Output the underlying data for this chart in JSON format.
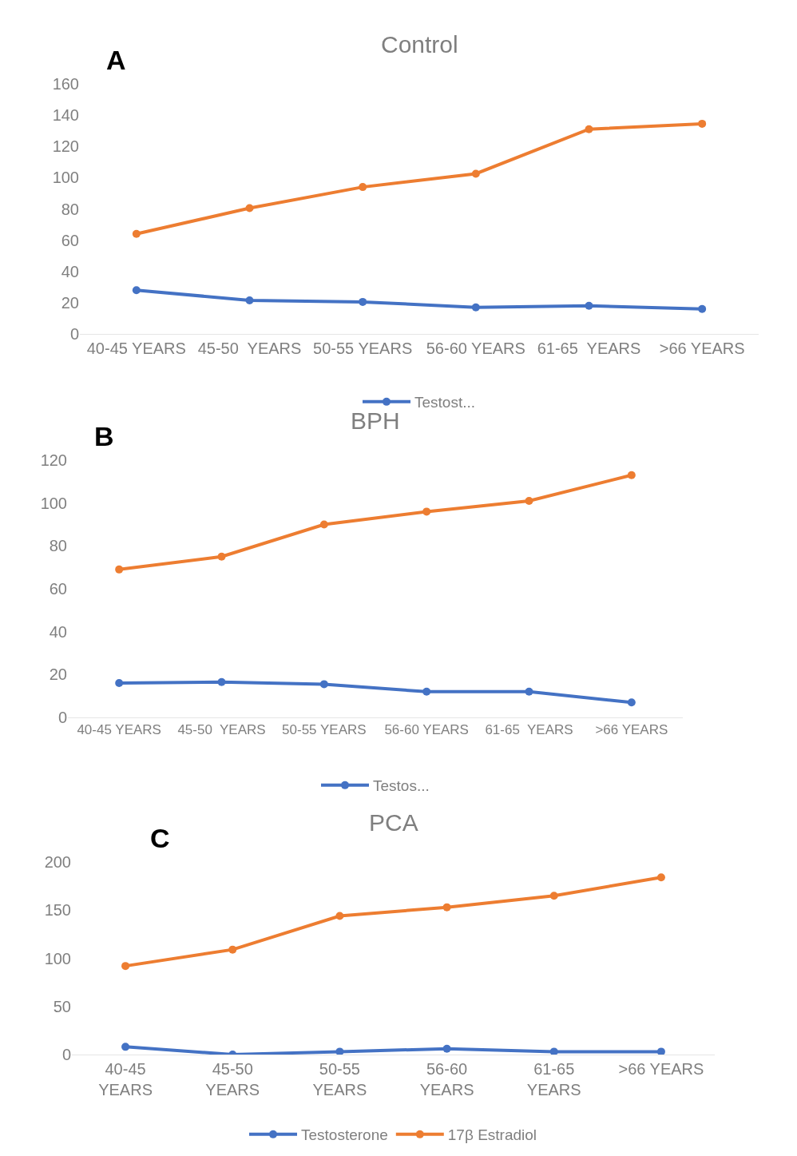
{
  "chart_data": [
    {
      "type": "line",
      "title": "Control",
      "annotations": [
        "A"
      ],
      "categories": [
        "40-45 YEARS",
        "45-50  YEARS",
        "50-55 YEARS",
        "56-60 YEARS",
        "61-65  YEARS",
        ">66 YEARS"
      ],
      "series": [
        {
          "name": "Testost...",
          "color": "#4472c4",
          "values": [
            28,
            21.5,
            20.5,
            17,
            18,
            16
          ]
        },
        {
          "color": "#ed7d31",
          "values": [
            64,
            80.5,
            94,
            102.5,
            131,
            134.5
          ]
        }
      ],
      "ylim": [
        0,
        160
      ],
      "yticks": [
        0,
        20,
        40,
        60,
        80,
        100,
        120,
        140,
        160
      ],
      "legend": "bottom",
      "marker": "circle",
      "line_style": "solid"
    },
    {
      "type": "line",
      "title": "BPH",
      "annotations": [
        "B"
      ],
      "categories": [
        "40-45 YEARS",
        "45-50  YEARS",
        "50-55 YEARS",
        "56-60 YEARS",
        "61-65  YEARS",
        ">66 YEARS"
      ],
      "series": [
        {
          "name": "Testos...",
          "color": "#4472c4",
          "values": [
            16,
            16.5,
            15.5,
            12,
            12,
            7
          ]
        },
        {
          "color": "#ed7d31",
          "values": [
            69,
            75,
            90,
            96,
            101,
            113
          ]
        }
      ],
      "ylim": [
        0,
        120
      ],
      "yticks": [
        0,
        20,
        40,
        60,
        80,
        100,
        120
      ],
      "legend": "bottom",
      "marker": "circle",
      "line_style": "solid"
    },
    {
      "type": "line",
      "title": "PCA",
      "annotations": [
        "C"
      ],
      "categories": [
        "40-45\nYEARS",
        "45-50\nYEARS",
        "50-55\nYEARS",
        "56-60\nYEARS",
        "61-65\nYEARS",
        ">66 YEARS"
      ],
      "series": [
        {
          "name": "Testosterone",
          "color": "#4472c4",
          "values": [
            8,
            0,
            3,
            6,
            3,
            3
          ]
        },
        {
          "name": "17β Estradiol",
          "color": "#ed7d31",
          "values": [
            92,
            109,
            144,
            153,
            165,
            184
          ]
        }
      ],
      "ylim": [
        0,
        200
      ],
      "yticks": [
        0,
        50,
        100,
        150,
        200
      ],
      "legend": "bottom",
      "marker": "circle",
      "line_style": "solid"
    }
  ]
}
